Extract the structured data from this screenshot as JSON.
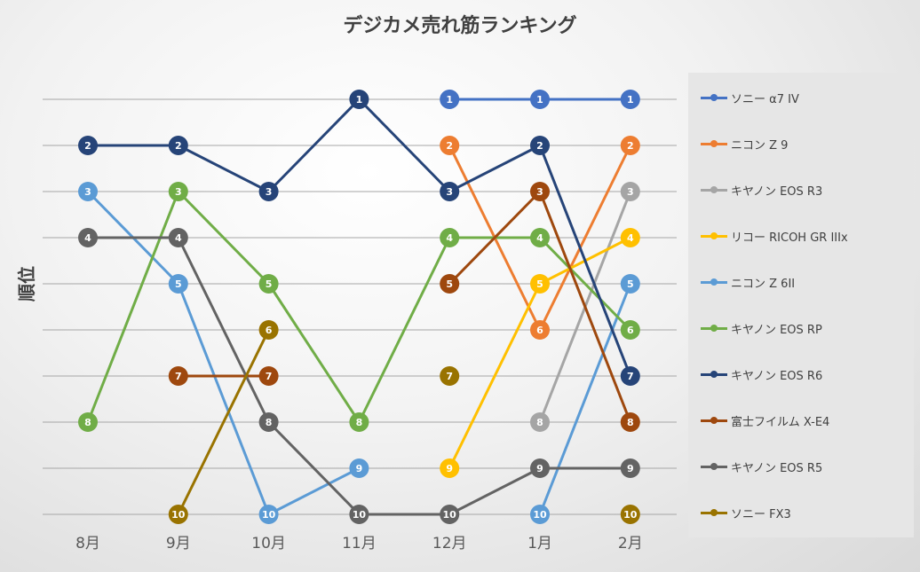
{
  "chart_data": {
    "type": "line",
    "title": "デジカメ売れ筋ランキング",
    "ylabel": "順位",
    "xlabel": "",
    "categories": [
      "8月",
      "9月",
      "10月",
      "11月",
      "12月",
      "1月",
      "2月"
    ],
    "ylim": [
      10,
      1
    ],
    "y_inverted": true,
    "grid": true,
    "legend_position": "right",
    "series": [
      {
        "name": "ソニー α7 IV",
        "color": "#4472c4",
        "values": [
          null,
          null,
          null,
          null,
          1,
          1,
          1
        ]
      },
      {
        "name": "ニコン Z 9",
        "color": "#ed7d31",
        "values": [
          null,
          null,
          null,
          null,
          2,
          6,
          2
        ]
      },
      {
        "name": "キヤノン EOS R3",
        "color": "#a5a5a5",
        "values": [
          null,
          null,
          null,
          null,
          null,
          8,
          3
        ]
      },
      {
        "name": "リコー RICOH GR IIIx",
        "color": "#ffc000",
        "values": [
          null,
          null,
          null,
          null,
          9,
          5,
          4
        ]
      },
      {
        "name": "ニコン Z 6II",
        "color": "#5b9bd5",
        "values": [
          3,
          5,
          10,
          9,
          null,
          10,
          5
        ]
      },
      {
        "name": "キヤノン EOS RP",
        "color": "#70ad47",
        "values": [
          8,
          3,
          5,
          8,
          4,
          4,
          6
        ]
      },
      {
        "name": "キヤノン EOS R6",
        "color": "#264478",
        "values": [
          2,
          2,
          3,
          1,
          3,
          2,
          7
        ]
      },
      {
        "name": "富士フイルム X-E4",
        "color": "#9e480e",
        "values": [
          null,
          7,
          7,
          null,
          5,
          3,
          8
        ]
      },
      {
        "name": "キヤノン EOS R5",
        "color": "#636363",
        "values": [
          4,
          4,
          8,
          10,
          10,
          9,
          9
        ]
      },
      {
        "name": "ソニー FX3",
        "color": "#997300",
        "values": [
          null,
          10,
          6,
          null,
          7,
          null,
          10
        ]
      }
    ]
  }
}
